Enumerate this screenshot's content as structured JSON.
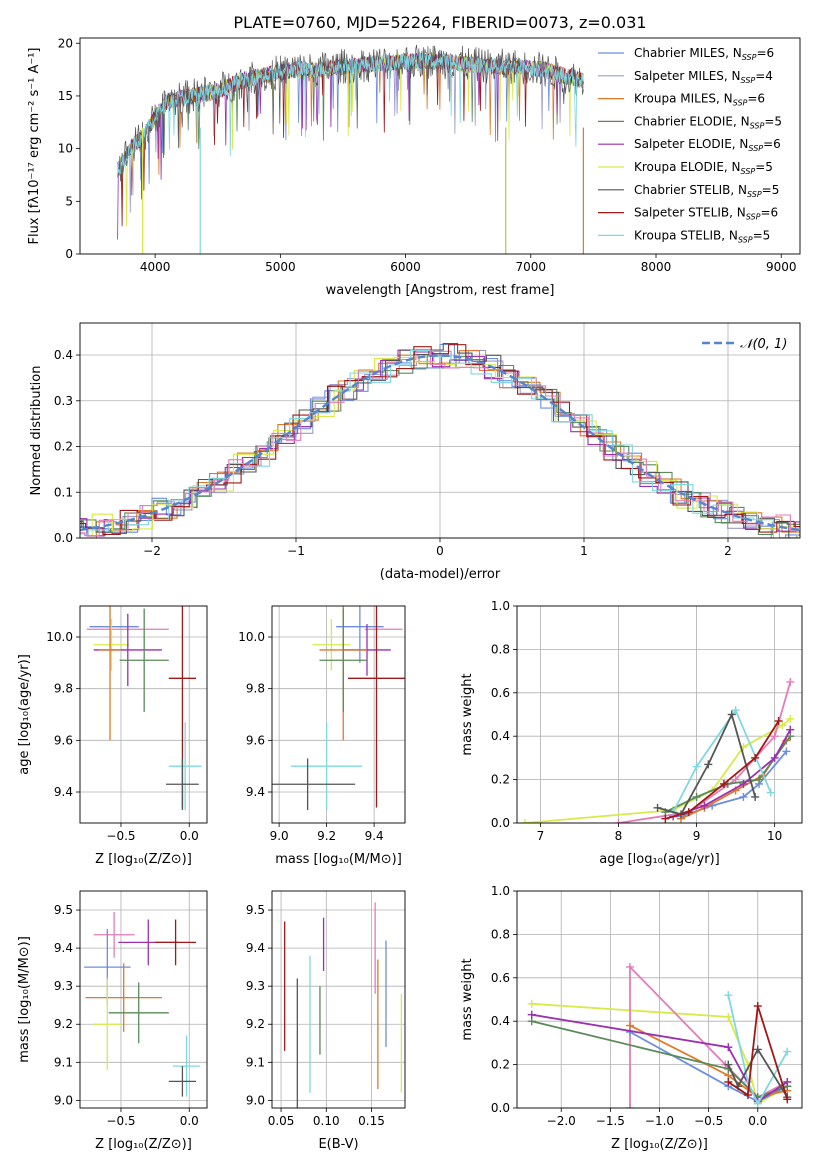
{
  "figure_title": "PLATE=0760, MJD=52264, FIBERID=0073, z=0.031",
  "colors": {
    "Chabrier MILES": "#6b8ee0",
    "Salpeter MILES": "#9b9bd0",
    "Kroupa MILES": "#e0782a",
    "Chabrier ELODIE": "#5a8a5a",
    "Salpeter ELODIE": "#9a2fb0",
    "Kroupa ELODIE": "#d8ea4a",
    "Chabrier STELIB": "#555555",
    "Salpeter STELIB": "#a01818",
    "Kroupa STELIB": "#7fd8e0",
    "pink": "#e57bb8",
    "gaussian": "#5585d0"
  },
  "legend_entries": [
    {
      "label": "Chabrier MILES, N",
      "sub": "SSP",
      "tail": "=6",
      "color": "#6b8ee0"
    },
    {
      "label": "Salpeter MILES, N",
      "sub": "SSP",
      "tail": "=4",
      "color": "#9b9bd0"
    },
    {
      "label": "Kroupa MILES, N",
      "sub": "SSP",
      "tail": "=6",
      "color": "#e0782a"
    },
    {
      "label": "Chabrier ELODIE, N",
      "sub": "SSP",
      "tail": "=5",
      "color": "#5a8a5a"
    },
    {
      "label": "Salpeter ELODIE, N",
      "sub": "SSP",
      "tail": "=6",
      "color": "#9a2fb0"
    },
    {
      "label": "Kroupa ELODIE, N",
      "sub": "SSP",
      "tail": "=5",
      "color": "#d8ea4a"
    },
    {
      "label": "Chabrier STELIB, N",
      "sub": "SSP",
      "tail": "=5",
      "color": "#555555"
    },
    {
      "label": "Salpeter STELIB, N",
      "sub": "SSP",
      "tail": "=6",
      "color": "#a01818"
    },
    {
      "label": "Kroupa STELIB, N",
      "sub": "SSP",
      "tail": "=5",
      "color": "#7fd8e0"
    }
  ],
  "chart_data": [
    {
      "type": "line",
      "id": "spectrum",
      "xlabel": "wavelength [Angstrom, rest frame]",
      "ylabel": "Flux [f_λ 10^-17 erg cm^-2 s^-1 A^-1]",
      "xlim": [
        3400,
        9150
      ],
      "ylim": [
        0,
        20.5
      ],
      "xticks": [
        4000,
        5000,
        6000,
        7000,
        8000,
        9000
      ],
      "yticks": [
        0,
        5,
        10,
        15,
        20
      ],
      "grid": false,
      "legend": "upper right",
      "series_coverage": [
        3700,
        7420
      ],
      "data_outline": {
        "x": [
          3700,
          3800,
          3900,
          4000,
          4100,
          4300,
          4500,
          4700,
          4900,
          5100,
          5300,
          5500,
          5700,
          5900,
          6100,
          6300,
          6500,
          6700,
          6900,
          7100,
          7300,
          7420
        ],
        "y": [
          8,
          10,
          11,
          13,
          14.5,
          15,
          15.5,
          16.5,
          17,
          17.5,
          17.5,
          17.8,
          18,
          18.2,
          18.3,
          18.3,
          18,
          17.8,
          17.8,
          17.5,
          16.8,
          16.5
        ]
      }
    },
    {
      "type": "histogram",
      "id": "residuals",
      "xlabel": "(data-model)/error",
      "ylabel": "Normed distribution",
      "xlim": [
        -2.5,
        2.5
      ],
      "ylim": [
        0,
        0.47
      ],
      "xticks": [
        -2,
        -1,
        0,
        1,
        2
      ],
      "yticks": [
        0.0,
        0.1,
        0.2,
        0.3,
        0.4
      ],
      "grid": true,
      "legend": "upper right",
      "reference": "N(0,1)"
    },
    {
      "type": "scatter",
      "id": "age_vs_Z",
      "xlabel": "Z [log10(Z/Z☉)]",
      "ylabel": "age [log10(age/yr)]",
      "xlim": [
        -0.8,
        0.13
      ],
      "ylim": [
        9.28,
        10.12
      ],
      "xticks": [
        -0.5,
        0.0
      ],
      "yticks": [
        9.4,
        9.6,
        9.8,
        10.0
      ],
      "grid": true,
      "points": [
        {
          "x": -0.55,
          "xerr": 0.18,
          "y": 10.04,
          "yerr": 0.0,
          "color": "#6b8ee0"
        },
        {
          "x": -0.45,
          "xerr": 0.3,
          "y": 10.03,
          "yerr": 0.0,
          "color": "#e57bb8"
        },
        {
          "x": -0.57,
          "xerr": 0.13,
          "y": 9.97,
          "yerr": 0.1,
          "color": "#d8ea4a"
        },
        {
          "x": -0.45,
          "xerr": 0.25,
          "y": 9.95,
          "yerr": 0.14,
          "color": "#9a2fb0"
        },
        {
          "x": -0.58,
          "xerr": 0.08,
          "y": 9.95,
          "yerr": 0.35,
          "color": "#e0782a"
        },
        {
          "x": -0.33,
          "xerr": 0.18,
          "y": 9.91,
          "yerr": 0.2,
          "color": "#5a8a5a"
        },
        {
          "x": -0.05,
          "xerr": 0.1,
          "y": 9.84,
          "yerr": 0.5,
          "color": "#a01818"
        },
        {
          "x": -0.03,
          "xerr": 0.12,
          "y": 9.5,
          "yerr": 0.17,
          "color": "#7fd8e0"
        },
        {
          "x": -0.05,
          "xerr": 0.12,
          "y": 9.43,
          "yerr": 0.1,
          "color": "#555555"
        }
      ]
    },
    {
      "type": "scatter",
      "id": "age_vs_mass",
      "xlabel": "mass [log10(M/M☉)]",
      "ylabel": "",
      "xlim": [
        8.97,
        9.53
      ],
      "ylim": [
        9.28,
        10.12
      ],
      "xticks": [
        9.0,
        9.2,
        9.4
      ],
      "yticks": [
        9.4,
        9.6,
        9.8,
        10.0
      ],
      "grid": true,
      "points": [
        {
          "x": 9.34,
          "xerr": 0.1,
          "y": 10.04,
          "yerr": 0.14,
          "color": "#6b8ee0"
        },
        {
          "x": 9.44,
          "xerr": 0.08,
          "y": 10.03,
          "yerr": 0.0,
          "color": "#e57bb8"
        },
        {
          "x": 9.22,
          "xerr": 0.08,
          "y": 9.97,
          "yerr": 0.1,
          "color": "#d8ea4a"
        },
        {
          "x": 9.37,
          "xerr": 0.1,
          "y": 9.95,
          "yerr": 0.1,
          "color": "#9a2fb0"
        },
        {
          "x": 9.27,
          "xerr": 0.1,
          "y": 9.95,
          "yerr": 0.35,
          "color": "#e0782a"
        },
        {
          "x": 9.27,
          "xerr": 0.1,
          "y": 9.91,
          "yerr": 0.2,
          "color": "#5a8a5a"
        },
        {
          "x": 9.41,
          "xerr": 0.12,
          "y": 9.84,
          "yerr": 0.5,
          "color": "#a01818"
        },
        {
          "x": 9.2,
          "xerr": 0.15,
          "y": 9.5,
          "yerr": 0.17,
          "color": "#7fd8e0"
        },
        {
          "x": 9.12,
          "xerr": 0.2,
          "y": 9.43,
          "yerr": 0.1,
          "color": "#555555"
        }
      ]
    },
    {
      "type": "line",
      "id": "mass_weight_vs_age",
      "xlabel": "age [log10(age/yr)]",
      "ylabel": "mass weight",
      "xlim": [
        6.7,
        10.35
      ],
      "ylim": [
        0,
        1
      ],
      "xticks": [
        7,
        8,
        9,
        10
      ],
      "yticks": [
        0.0,
        0.2,
        0.4,
        0.6,
        0.8,
        1.0
      ],
      "grid": true,
      "series": [
        {
          "color": "#d8ea4a",
          "x": [
            6.8,
            8.7,
            9.2,
            9.6,
            10.1,
            10.2
          ],
          "y": [
            0.0,
            0.06,
            0.15,
            0.35,
            0.45,
            0.48
          ]
        },
        {
          "color": "#e57bb8",
          "x": [
            8.0,
            8.9,
            9.5,
            10.0,
            10.2
          ],
          "y": [
            0.0,
            0.05,
            0.2,
            0.4,
            0.65
          ]
        },
        {
          "color": "#6b8ee0",
          "x": [
            8.8,
            9.2,
            9.6,
            9.8,
            10.15
          ],
          "y": [
            0.03,
            0.08,
            0.12,
            0.18,
            0.33
          ]
        },
        {
          "color": "#e0782a",
          "x": [
            8.8,
            9.1,
            9.5,
            9.85,
            10.15
          ],
          "y": [
            0.02,
            0.07,
            0.15,
            0.22,
            0.38
          ]
        },
        {
          "color": "#5a8a5a",
          "x": [
            8.6,
            9.0,
            9.4,
            9.8,
            10.2
          ],
          "y": [
            0.05,
            0.12,
            0.18,
            0.2,
            0.4
          ]
        },
        {
          "color": "#9a2fb0",
          "x": [
            8.7,
            9.1,
            9.6,
            10.0,
            10.2
          ],
          "y": [
            0.03,
            0.08,
            0.18,
            0.3,
            0.43
          ]
        },
        {
          "color": "#7fd8e0",
          "x": [
            8.7,
            9.0,
            9.5,
            9.95
          ],
          "y": [
            0.05,
            0.26,
            0.52,
            0.14
          ]
        },
        {
          "color": "#555555",
          "x": [
            8.5,
            8.8,
            9.15,
            9.45,
            9.75
          ],
          "y": [
            0.07,
            0.04,
            0.27,
            0.5,
            0.12
          ]
        },
        {
          "color": "#a01818",
          "x": [
            8.6,
            8.9,
            9.35,
            9.75,
            10.05
          ],
          "y": [
            0.02,
            0.05,
            0.18,
            0.3,
            0.47
          ]
        }
      ]
    },
    {
      "type": "scatter",
      "id": "mass_vs_Z",
      "xlabel": "Z [log10(Z/Z☉)]",
      "ylabel": "mass [log10(M/M☉)]",
      "xlim": [
        -0.8,
        0.13
      ],
      "ylim": [
        8.98,
        9.55
      ],
      "xticks": [
        -0.5,
        0.0
      ],
      "yticks": [
        9.0,
        9.1,
        9.2,
        9.3,
        9.4,
        9.5
      ],
      "grid": true,
      "points": [
        {
          "x": -0.55,
          "xerr": 0.15,
          "y": 9.435,
          "yerr": 0.06,
          "color": "#e57bb8"
        },
        {
          "x": -0.3,
          "xerr": 0.22,
          "y": 9.415,
          "yerr": 0.06,
          "color": "#9a2fb0"
        },
        {
          "x": -0.1,
          "xerr": 0.15,
          "y": 9.415,
          "yerr": 0.06,
          "color": "#a01818"
        },
        {
          "x": -0.6,
          "xerr": 0.17,
          "y": 9.35,
          "yerr": 0.1,
          "color": "#6b8ee0"
        },
        {
          "x": -0.48,
          "xerr": 0.28,
          "y": 9.27,
          "yerr": 0.09,
          "color": "#e0782a"
        },
        {
          "x": -0.37,
          "xerr": 0.22,
          "y": 9.23,
          "yerr": 0.08,
          "color": "#5a8a5a"
        },
        {
          "x": -0.6,
          "xerr": 0.1,
          "y": 9.2,
          "yerr": 0.12,
          "color": "#d8ea4a"
        },
        {
          "x": -0.02,
          "xerr": 0.1,
          "y": 9.09,
          "yerr": 0.08,
          "color": "#7fd8e0"
        },
        {
          "x": -0.05,
          "xerr": 0.1,
          "y": 9.05,
          "yerr": 0.04,
          "color": "#555555"
        }
      ]
    },
    {
      "type": "scatter",
      "id": "mass_vs_ebv",
      "xlabel": "E(B-V)",
      "ylabel": "",
      "xlim": [
        0.04,
        0.187
      ],
      "ylim": [
        8.98,
        9.55
      ],
      "xticks": [
        0.05,
        0.1,
        0.15
      ],
      "yticks": [
        9.0,
        9.1,
        9.2,
        9.3,
        9.4,
        9.5
      ],
      "grid": true,
      "points": [
        {
          "x": 0.054,
          "y": 9.3,
          "yerr": 0.17,
          "color": "#a01818"
        },
        {
          "x": 0.068,
          "y": 9.15,
          "yerr": 0.17,
          "color": "#555555"
        },
        {
          "x": 0.082,
          "y": 9.2,
          "yerr": 0.18,
          "color": "#7fd8e0"
        },
        {
          "x": 0.093,
          "y": 9.21,
          "yerr": 0.09,
          "color": "#5a8a5a"
        },
        {
          "x": 0.097,
          "y": 9.41,
          "yerr": 0.07,
          "color": "#9a2fb0"
        },
        {
          "x": 0.154,
          "y": 9.4,
          "yerr": 0.12,
          "color": "#e57bb8"
        },
        {
          "x": 0.157,
          "y": 9.2,
          "yerr": 0.17,
          "color": "#e0782a"
        },
        {
          "x": 0.166,
          "y": 9.28,
          "yerr": 0.14,
          "color": "#6b8ee0"
        },
        {
          "x": 0.183,
          "y": 9.15,
          "yerr": 0.13,
          "color": "#d8ea4a"
        }
      ]
    },
    {
      "type": "line",
      "id": "mass_weight_vs_Z",
      "xlabel": "Z [log10(Z/Z☉)]",
      "ylabel": "mass weight",
      "xlim": [
        -2.45,
        0.45
      ],
      "ylim": [
        0,
        1
      ],
      "xticks": [
        -2.0,
        -1.5,
        -1.0,
        -0.5,
        0.0
      ],
      "yticks": [
        0.0,
        0.2,
        0.4,
        0.6,
        0.8,
        1.0
      ],
      "grid": true,
      "series": [
        {
          "color": "#d8ea4a",
          "x": [
            -2.3,
            -0.3,
            -0.1,
            0.0,
            0.3
          ],
          "y": [
            0.48,
            0.42,
            0.2,
            0.02,
            0.1
          ]
        },
        {
          "color": "#e57bb8",
          "x": [
            -1.3,
            -1.3,
            -0.33,
            0.0,
            0.3
          ],
          "y": [
            0.0,
            0.65,
            0.2,
            0.05,
            0.12
          ]
        },
        {
          "color": "#6b8ee0",
          "x": [
            -1.3,
            -0.3,
            0.0,
            0.3
          ],
          "y": [
            0.35,
            0.1,
            0.03,
            0.1
          ]
        },
        {
          "color": "#e0782a",
          "x": [
            -1.3,
            -0.3,
            0.0,
            0.3
          ],
          "y": [
            0.38,
            0.15,
            0.05,
            0.08
          ]
        },
        {
          "color": "#5a8a5a",
          "x": [
            -2.3,
            -0.3,
            0.0,
            0.3
          ],
          "y": [
            0.4,
            0.18,
            0.05,
            0.1
          ]
        },
        {
          "color": "#9a2fb0",
          "x": [
            -2.3,
            -0.3,
            0.0,
            0.3
          ],
          "y": [
            0.43,
            0.28,
            0.03,
            0.12
          ]
        },
        {
          "color": "#7fd8e0",
          "x": [
            -0.3,
            -0.1,
            0.0,
            0.3
          ],
          "y": [
            0.52,
            0.12,
            0.02,
            0.26
          ]
        },
        {
          "color": "#555555",
          "x": [
            -0.3,
            -0.2,
            0.0,
            0.3
          ],
          "y": [
            0.2,
            0.1,
            0.27,
            0.05
          ]
        },
        {
          "color": "#a01818",
          "x": [
            -0.3,
            -0.1,
            0.0,
            0.3
          ],
          "y": [
            0.12,
            0.06,
            0.47,
            0.04
          ]
        }
      ]
    }
  ]
}
